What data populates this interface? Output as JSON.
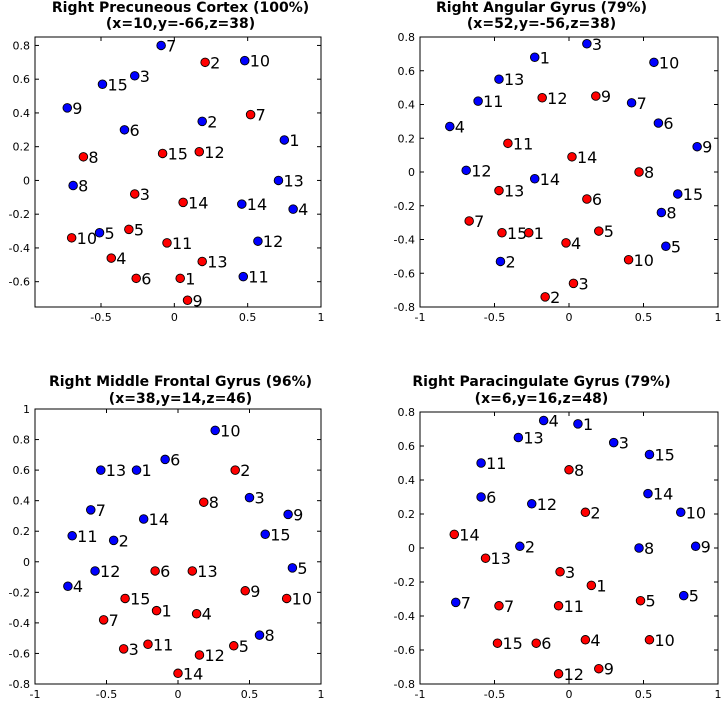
{
  "colors": {
    "blue": "#0000ff",
    "red": "#ff0000",
    "axis": "#000000"
  },
  "chart_data": [
    {
      "type": "scatter",
      "title": "Right Precuneous Cortex (100%)",
      "subtitle": "(x=10,y=-66,z=38)",
      "xlim": [
        -0.95,
        1.0
      ],
      "ylim": [
        -0.75,
        0.85
      ],
      "xticks": [
        -0.5,
        0,
        0.5,
        1
      ],
      "xtick_labels": [
        "-0.5",
        "0",
        "0.5",
        "1"
      ],
      "yticks": [
        -0.6,
        -0.4,
        -0.2,
        0,
        0.2,
        0.4,
        0.6,
        0.8
      ],
      "ytick_labels": [
        "-0.6",
        "-0.4",
        "-0.2",
        "0",
        "0.2",
        "0.4",
        "0.6",
        "0.8"
      ],
      "grid": false,
      "series": [
        {
          "color": "blue",
          "points": [
            {
              "x": -0.09,
              "y": 0.8,
              "label": "7"
            },
            {
              "x": 0.48,
              "y": 0.71,
              "label": "10"
            },
            {
              "x": -0.27,
              "y": 0.62,
              "label": "3"
            },
            {
              "x": -0.49,
              "y": 0.57,
              "label": "15"
            },
            {
              "x": -0.73,
              "y": 0.43,
              "label": "9"
            },
            {
              "x": -0.34,
              "y": 0.3,
              "label": "6"
            },
            {
              "x": 0.19,
              "y": 0.35,
              "label": "2"
            },
            {
              "x": 0.75,
              "y": 0.24,
              "label": "1"
            },
            {
              "x": 0.71,
              "y": 0.0,
              "label": "13"
            },
            {
              "x": -0.69,
              "y": -0.03,
              "label": "8"
            },
            {
              "x": 0.46,
              "y": -0.14,
              "label": "14"
            },
            {
              "x": 0.81,
              "y": -0.17,
              "label": "4"
            },
            {
              "x": -0.51,
              "y": -0.31,
              "label": "5"
            },
            {
              "x": 0.57,
              "y": -0.36,
              "label": "12"
            },
            {
              "x": 0.47,
              "y": -0.57,
              "label": "11"
            }
          ]
        },
        {
          "color": "red",
          "points": [
            {
              "x": 0.21,
              "y": 0.7,
              "label": "2"
            },
            {
              "x": 0.52,
              "y": 0.39,
              "label": "7"
            },
            {
              "x": -0.08,
              "y": 0.16,
              "label": "15"
            },
            {
              "x": 0.17,
              "y": 0.17,
              "label": "12"
            },
            {
              "x": -0.62,
              "y": 0.14,
              "label": "8"
            },
            {
              "x": -0.27,
              "y": -0.08,
              "label": "3"
            },
            {
              "x": 0.06,
              "y": -0.13,
              "label": "14"
            },
            {
              "x": -0.31,
              "y": -0.29,
              "label": "5"
            },
            {
              "x": -0.7,
              "y": -0.34,
              "label": "10"
            },
            {
              "x": -0.05,
              "y": -0.37,
              "label": "11"
            },
            {
              "x": -0.43,
              "y": -0.46,
              "label": "4"
            },
            {
              "x": 0.19,
              "y": -0.48,
              "label": "13"
            },
            {
              "x": -0.26,
              "y": -0.58,
              "label": "6"
            },
            {
              "x": 0.04,
              "y": -0.58,
              "label": "1"
            },
            {
              "x": 0.09,
              "y": -0.71,
              "label": "9"
            }
          ]
        }
      ]
    },
    {
      "type": "scatter",
      "title": "Right Angular Gyrus (79%)",
      "subtitle": "(x=52,y=-56,z=38)",
      "xlim": [
        -1,
        1
      ],
      "ylim": [
        -0.8,
        0.8
      ],
      "xticks": [
        -1,
        -0.5,
        0,
        0.5,
        1
      ],
      "xtick_labels": [
        "-1",
        "-0.5",
        "0",
        "0.5",
        "1"
      ],
      "yticks": [
        -0.8,
        -0.6,
        -0.4,
        -0.2,
        0,
        0.2,
        0.4,
        0.6,
        0.8
      ],
      "ytick_labels": [
        "-0.8",
        "-0.6",
        "-0.4",
        "-0.2",
        "0",
        "0.2",
        "0.4",
        "0.6",
        "0.8"
      ],
      "grid": false,
      "series": [
        {
          "color": "blue",
          "points": [
            {
              "x": 0.12,
              "y": 0.76,
              "label": "3"
            },
            {
              "x": -0.23,
              "y": 0.68,
              "label": "1"
            },
            {
              "x": 0.57,
              "y": 0.65,
              "label": "10"
            },
            {
              "x": -0.47,
              "y": 0.55,
              "label": "13"
            },
            {
              "x": -0.61,
              "y": 0.42,
              "label": "11"
            },
            {
              "x": 0.42,
              "y": 0.41,
              "label": "7"
            },
            {
              "x": 0.6,
              "y": 0.29,
              "label": "6"
            },
            {
              "x": -0.8,
              "y": 0.27,
              "label": "4"
            },
            {
              "x": 0.86,
              "y": 0.15,
              "label": "9"
            },
            {
              "x": -0.69,
              "y": 0.01,
              "label": "12"
            },
            {
              "x": -0.23,
              "y": -0.04,
              "label": "14"
            },
            {
              "x": 0.73,
              "y": -0.13,
              "label": "15"
            },
            {
              "x": 0.62,
              "y": -0.24,
              "label": "8"
            },
            {
              "x": 0.65,
              "y": -0.44,
              "label": "5"
            },
            {
              "x": -0.46,
              "y": -0.53,
              "label": "2"
            }
          ]
        },
        {
          "color": "red",
          "points": [
            {
              "x": -0.18,
              "y": 0.44,
              "label": "12"
            },
            {
              "x": 0.18,
              "y": 0.45,
              "label": "9"
            },
            {
              "x": -0.41,
              "y": 0.17,
              "label": "11"
            },
            {
              "x": 0.02,
              "y": 0.09,
              "label": "14"
            },
            {
              "x": 0.47,
              "y": 0.0,
              "label": "8"
            },
            {
              "x": -0.47,
              "y": -0.11,
              "label": "13"
            },
            {
              "x": 0.12,
              "y": -0.16,
              "label": "6"
            },
            {
              "x": -0.67,
              "y": -0.29,
              "label": "7"
            },
            {
              "x": -0.45,
              "y": -0.36,
              "label": "15"
            },
            {
              "x": -0.27,
              "y": -0.36,
              "label": "1"
            },
            {
              "x": 0.2,
              "y": -0.35,
              "label": "5"
            },
            {
              "x": -0.02,
              "y": -0.42,
              "label": "4"
            },
            {
              "x": 0.4,
              "y": -0.52,
              "label": "10"
            },
            {
              "x": 0.03,
              "y": -0.66,
              "label": "3"
            },
            {
              "x": -0.16,
              "y": -0.74,
              "label": "2"
            }
          ]
        }
      ]
    },
    {
      "type": "scatter",
      "title": "Right Middle Frontal Gyrus (96%)",
      "subtitle": "(x=38,y=14,z=46)",
      "xlim": [
        -1,
        1
      ],
      "ylim": [
        -0.8,
        1.0
      ],
      "xticks": [
        -1,
        -0.5,
        0,
        0.5,
        1
      ],
      "xtick_labels": [
        "-1",
        "-0.5",
        "0",
        "0.5",
        "1"
      ],
      "yticks": [
        -0.8,
        -0.6,
        -0.4,
        -0.2,
        0,
        0.2,
        0.4,
        0.6,
        0.8,
        1
      ],
      "ytick_labels": [
        "-0.8",
        "-0.6",
        "-0.4",
        "-0.2",
        "0",
        "0.2",
        "0.4",
        "0.6",
        "0.8",
        "1"
      ],
      "grid": false,
      "series": [
        {
          "color": "blue",
          "points": [
            {
              "x": 0.26,
              "y": 0.86,
              "label": "10"
            },
            {
              "x": -0.09,
              "y": 0.67,
              "label": "6"
            },
            {
              "x": -0.54,
              "y": 0.6,
              "label": "13"
            },
            {
              "x": -0.29,
              "y": 0.6,
              "label": "1"
            },
            {
              "x": 0.5,
              "y": 0.42,
              "label": "3"
            },
            {
              "x": 0.77,
              "y": 0.31,
              "label": "9"
            },
            {
              "x": -0.61,
              "y": 0.34,
              "label": "7"
            },
            {
              "x": -0.24,
              "y": 0.28,
              "label": "14"
            },
            {
              "x": 0.61,
              "y": 0.18,
              "label": "15"
            },
            {
              "x": -0.74,
              "y": 0.17,
              "label": "11"
            },
            {
              "x": -0.45,
              "y": 0.14,
              "label": "2"
            },
            {
              "x": 0.8,
              "y": -0.04,
              "label": "5"
            },
            {
              "x": -0.58,
              "y": -0.06,
              "label": "12"
            },
            {
              "x": -0.77,
              "y": -0.16,
              "label": "4"
            },
            {
              "x": 0.57,
              "y": -0.48,
              "label": "8"
            }
          ]
        },
        {
          "color": "red",
          "points": [
            {
              "x": 0.4,
              "y": 0.6,
              "label": "2"
            },
            {
              "x": 0.18,
              "y": 0.39,
              "label": "8"
            },
            {
              "x": -0.16,
              "y": -0.06,
              "label": "6"
            },
            {
              "x": 0.1,
              "y": -0.06,
              "label": "13"
            },
            {
              "x": 0.47,
              "y": -0.19,
              "label": "9"
            },
            {
              "x": 0.76,
              "y": -0.24,
              "label": "10"
            },
            {
              "x": -0.37,
              "y": -0.24,
              "label": "15"
            },
            {
              "x": -0.15,
              "y": -0.32,
              "label": "1"
            },
            {
              "x": 0.13,
              "y": -0.34,
              "label": "4"
            },
            {
              "x": -0.52,
              "y": -0.38,
              "label": "7"
            },
            {
              "x": 0.39,
              "y": -0.55,
              "label": "5"
            },
            {
              "x": -0.21,
              "y": -0.54,
              "label": "11"
            },
            {
              "x": -0.38,
              "y": -0.57,
              "label": "3"
            },
            {
              "x": 0.15,
              "y": -0.61,
              "label": "12"
            },
            {
              "x": 0.0,
              "y": -0.73,
              "label": "14"
            }
          ]
        }
      ]
    },
    {
      "type": "scatter",
      "title": "Right Paracingulate Gyrus (79%)",
      "subtitle": "(x=6,y=16,z=48)",
      "xlim": [
        -1,
        1
      ],
      "ylim": [
        -0.8,
        0.8
      ],
      "xticks": [
        -1,
        -0.5,
        0,
        0.5,
        1
      ],
      "xtick_labels": [
        "-1",
        "-0.5",
        "0",
        "0.5",
        "1"
      ],
      "yticks": [
        -0.8,
        -0.6,
        -0.4,
        -0.2,
        0,
        0.2,
        0.4,
        0.6,
        0.8
      ],
      "ytick_labels": [
        "-0.8",
        "-0.6",
        "-0.4",
        "-0.2",
        "0",
        "0.2",
        "0.4",
        "0.6",
        "0.8"
      ],
      "grid": false,
      "series": [
        {
          "color": "blue",
          "points": [
            {
              "x": -0.17,
              "y": 0.75,
              "label": "4"
            },
            {
              "x": 0.06,
              "y": 0.73,
              "label": "1"
            },
            {
              "x": -0.34,
              "y": 0.65,
              "label": "13"
            },
            {
              "x": 0.3,
              "y": 0.62,
              "label": "3"
            },
            {
              "x": 0.54,
              "y": 0.55,
              "label": "15"
            },
            {
              "x": -0.59,
              "y": 0.5,
              "label": "11"
            },
            {
              "x": 0.53,
              "y": 0.32,
              "label": "14"
            },
            {
              "x": -0.59,
              "y": 0.3,
              "label": "6"
            },
            {
              "x": -0.25,
              "y": 0.26,
              "label": "12"
            },
            {
              "x": 0.75,
              "y": 0.21,
              "label": "10"
            },
            {
              "x": -0.33,
              "y": 0.01,
              "label": "2"
            },
            {
              "x": 0.47,
              "y": 0.0,
              "label": "8"
            },
            {
              "x": 0.85,
              "y": 0.01,
              "label": "9"
            },
            {
              "x": -0.76,
              "y": -0.32,
              "label": "7"
            },
            {
              "x": 0.77,
              "y": -0.28,
              "label": "5"
            }
          ]
        },
        {
          "color": "red",
          "points": [
            {
              "x": 0.0,
              "y": 0.46,
              "label": "8"
            },
            {
              "x": 0.11,
              "y": 0.21,
              "label": "2"
            },
            {
              "x": -0.77,
              "y": 0.08,
              "label": "14"
            },
            {
              "x": -0.56,
              "y": -0.06,
              "label": "13"
            },
            {
              "x": -0.06,
              "y": -0.14,
              "label": "3"
            },
            {
              "x": 0.15,
              "y": -0.22,
              "label": "1"
            },
            {
              "x": 0.48,
              "y": -0.31,
              "label": "5"
            },
            {
              "x": -0.47,
              "y": -0.34,
              "label": "7"
            },
            {
              "x": -0.07,
              "y": -0.34,
              "label": "11"
            },
            {
              "x": -0.48,
              "y": -0.56,
              "label": "15"
            },
            {
              "x": -0.22,
              "y": -0.56,
              "label": "6"
            },
            {
              "x": 0.11,
              "y": -0.54,
              "label": "4"
            },
            {
              "x": 0.54,
              "y": -0.54,
              "label": "10"
            },
            {
              "x": 0.2,
              "y": -0.71,
              "label": "9"
            },
            {
              "x": -0.07,
              "y": -0.74,
              "label": "12"
            }
          ]
        }
      ]
    }
  ]
}
